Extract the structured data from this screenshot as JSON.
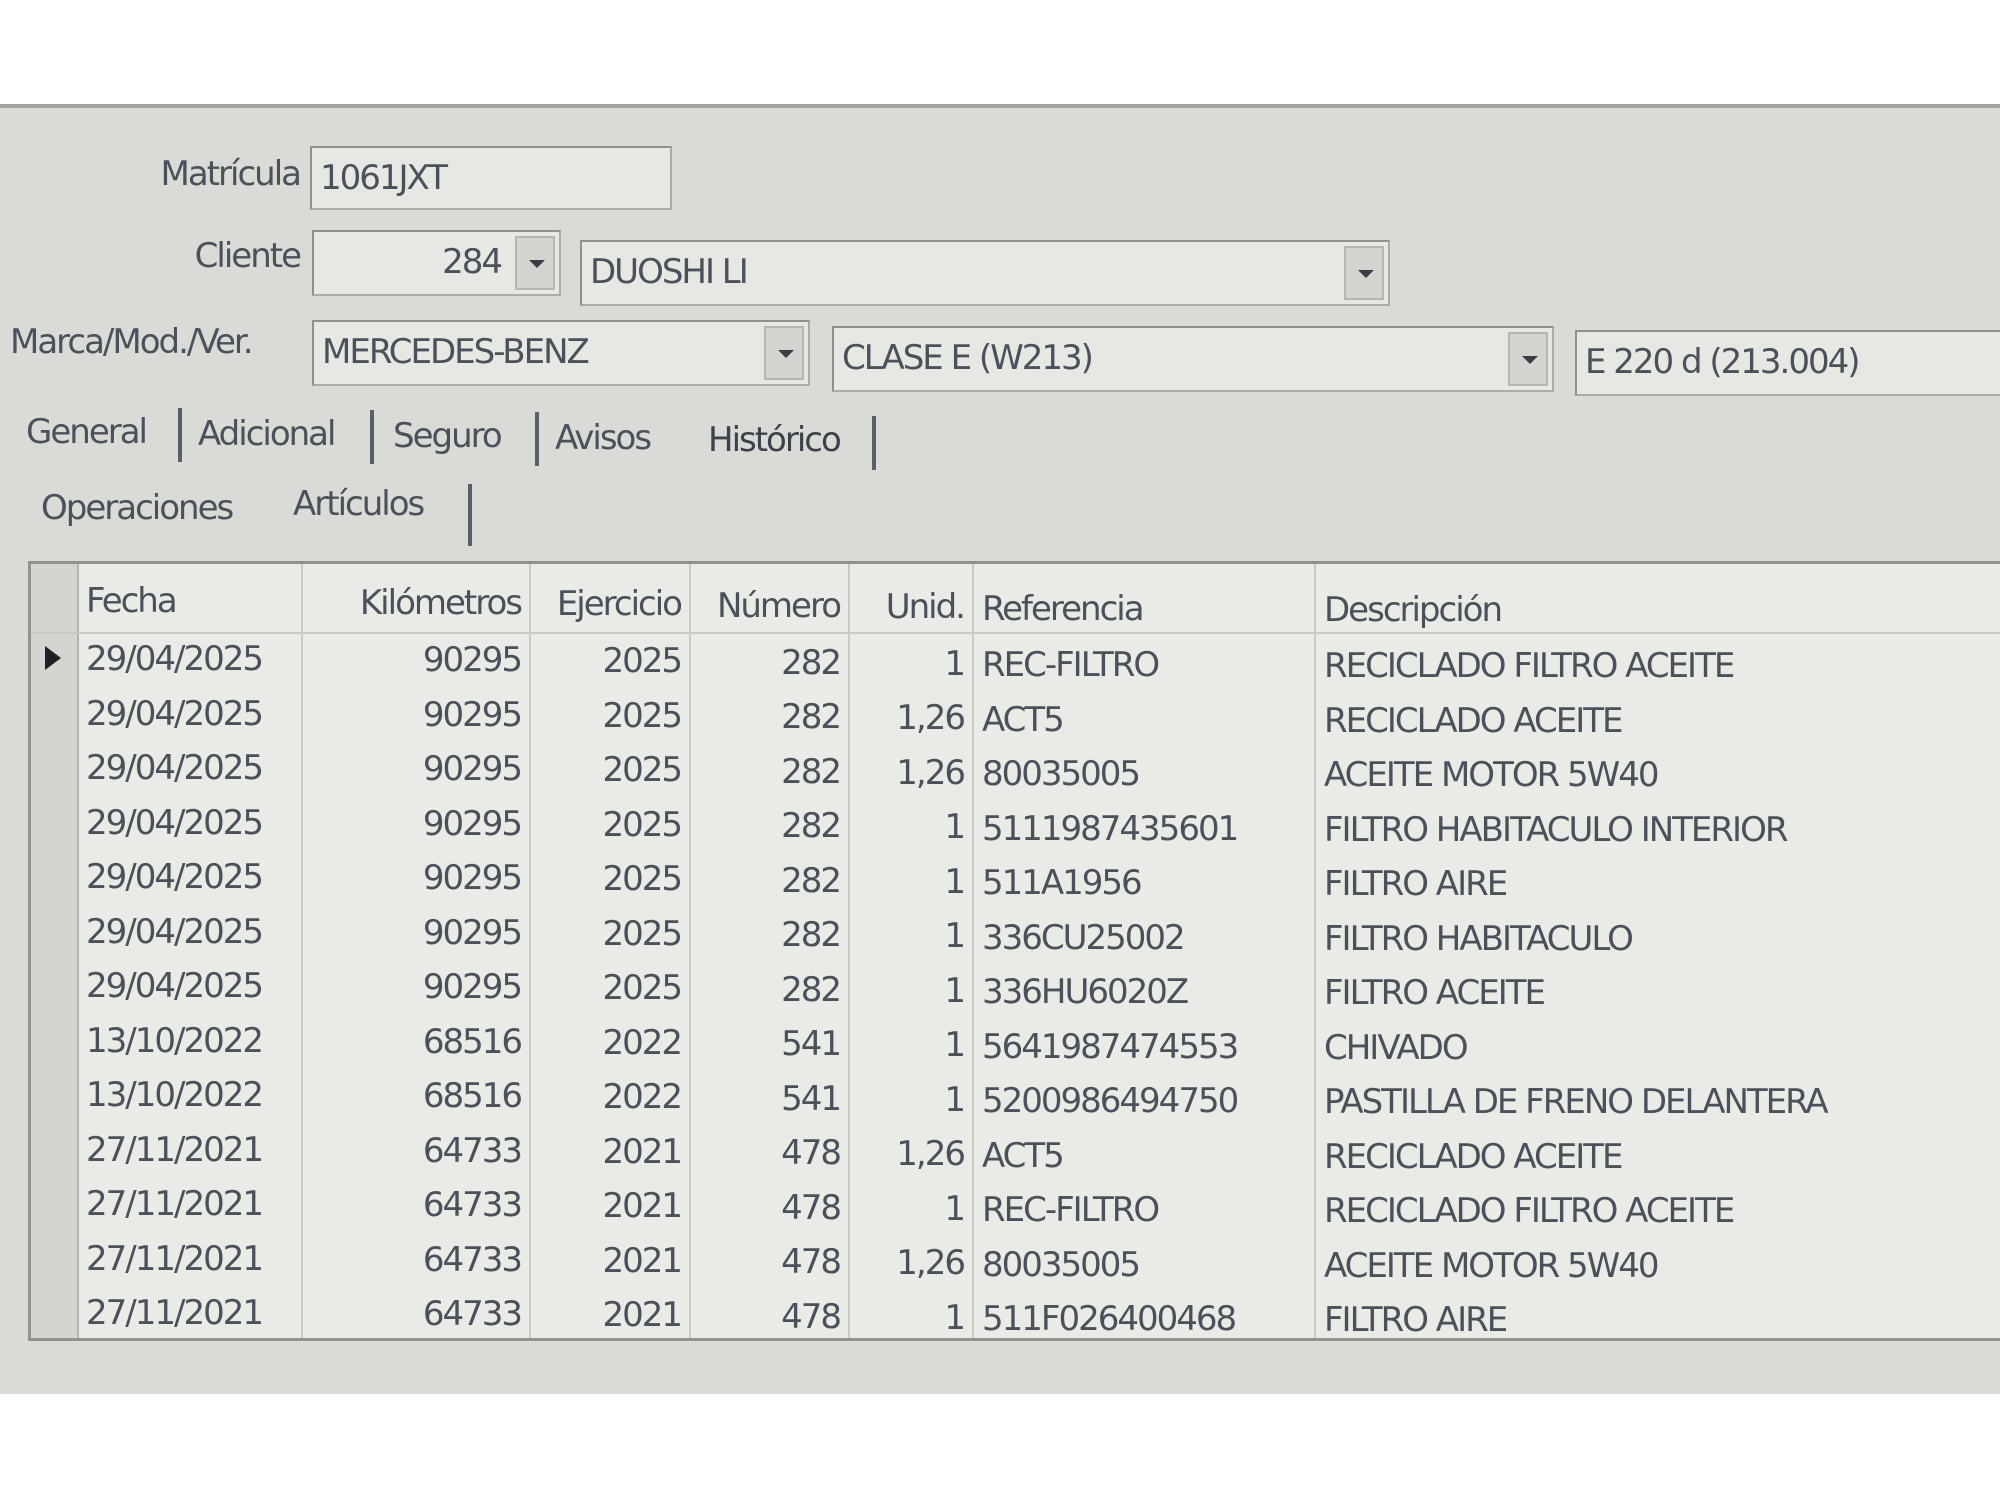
{
  "form": {
    "matricula_label": "Matrícula",
    "matricula": "1061JXT",
    "cliente_label": "Cliente",
    "cliente_code": "284",
    "cliente_name": "DUOSHI LI",
    "marca_label": "Marca/Mod./Ver.",
    "marca": "MERCEDES-BENZ",
    "modelo": "CLASE E (W213)",
    "version": "E 220 d (213.004)"
  },
  "tabs": [
    "General",
    "Adicional",
    "Seguro",
    "Avisos",
    "Histórico"
  ],
  "subtabs": [
    "Operaciones",
    "Artículos"
  ],
  "table": {
    "columns": [
      "Fecha",
      "Kilómetros",
      "Ejercicio",
      "Número",
      "Unid.",
      "Referencia",
      "Descripción"
    ],
    "rows": [
      [
        "29/04/2025",
        "90295",
        "2025",
        "282",
        "1",
        "REC-FILTRO",
        "RECICLADO FILTRO ACEITE"
      ],
      [
        "29/04/2025",
        "90295",
        "2025",
        "282",
        "1,26",
        "ACT5",
        "RECICLADO ACEITE"
      ],
      [
        "29/04/2025",
        "90295",
        "2025",
        "282",
        "1,26",
        "80035005",
        "ACEITE MOTOR 5W40"
      ],
      [
        "29/04/2025",
        "90295",
        "2025",
        "282",
        "1",
        "5111987435601",
        "FILTRO HABITACULO INTERIOR"
      ],
      [
        "29/04/2025",
        "90295",
        "2025",
        "282",
        "1",
        "511A1956",
        "FILTRO AIRE"
      ],
      [
        "29/04/2025",
        "90295",
        "2025",
        "282",
        "1",
        "336CU25002",
        "FILTRO HABITACULO"
      ],
      [
        "29/04/2025",
        "90295",
        "2025",
        "282",
        "1",
        "336HU6020Z",
        "FILTRO ACEITE"
      ],
      [
        "13/10/2022",
        "68516",
        "2022",
        "541",
        "1",
        "5641987474553",
        "CHIVADO"
      ],
      [
        "13/10/2022",
        "68516",
        "2022",
        "541",
        "1",
        "5200986494750",
        "PASTILLA DE FRENO DELANTERA"
      ],
      [
        "27/11/2021",
        "64733",
        "2021",
        "478",
        "1,26",
        "ACT5",
        "RECICLADO ACEITE"
      ],
      [
        "27/11/2021",
        "64733",
        "2021",
        "478",
        "1",
        "REC-FILTRO",
        "RECICLADO FILTRO ACEITE"
      ],
      [
        "27/11/2021",
        "64733",
        "2021",
        "478",
        "1,26",
        "80035005",
        "ACEITE MOTOR 5W40"
      ],
      [
        "27/11/2021",
        "64733",
        "2021",
        "478",
        "1",
        "511F026400468",
        "FILTRO AIRE"
      ]
    ]
  }
}
